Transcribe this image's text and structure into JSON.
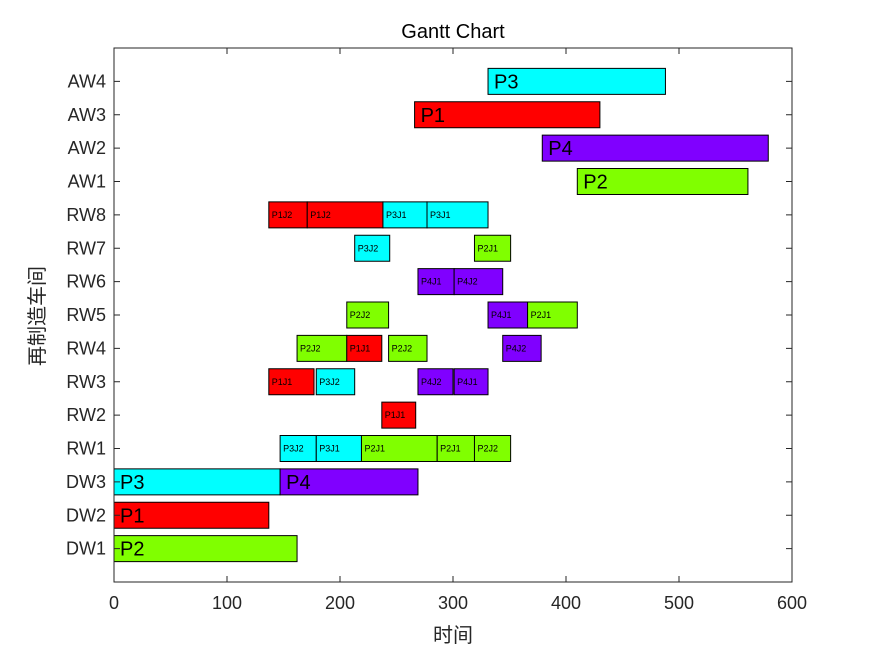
{
  "chart_data": {
    "type": "gantt",
    "title": "Gantt Chart",
    "xlabel": "时间",
    "ylabel": "再制造车间",
    "xlim": [
      0,
      600
    ],
    "xticks": [
      0,
      100,
      200,
      300,
      400,
      500,
      600
    ],
    "categories": [
      "DW1",
      "DW2",
      "DW3",
      "RW1",
      "RW2",
      "RW3",
      "RW4",
      "RW5",
      "RW6",
      "RW7",
      "RW8",
      "AW1",
      "AW2",
      "AW3",
      "AW4"
    ],
    "colors": {
      "P1": "#ff0000",
      "P2": "#80ff00",
      "P3": "#00ffff",
      "P4": "#8000ff"
    },
    "tasks": [
      {
        "row": "DW1",
        "start": 0,
        "end": 162,
        "label": "P2",
        "product": "P2",
        "size": "big"
      },
      {
        "row": "DW2",
        "start": 0,
        "end": 137,
        "label": "P1",
        "product": "P1",
        "size": "big"
      },
      {
        "row": "DW3",
        "start": 0,
        "end": 147,
        "label": "P3",
        "product": "P3",
        "size": "big"
      },
      {
        "row": "DW3",
        "start": 147,
        "end": 269,
        "label": "P4",
        "product": "P4",
        "size": "big"
      },
      {
        "row": "RW1",
        "start": 147,
        "end": 179,
        "label": "P3J2",
        "product": "P3",
        "size": "small"
      },
      {
        "row": "RW1",
        "start": 179,
        "end": 219,
        "label": "P3J1",
        "product": "P3",
        "size": "small"
      },
      {
        "row": "RW1",
        "start": 219,
        "end": 286,
        "label": "P2J1",
        "product": "P2",
        "size": "small"
      },
      {
        "row": "RW1",
        "start": 286,
        "end": 319,
        "label": "P2J1",
        "product": "P2",
        "size": "small"
      },
      {
        "row": "RW1",
        "start": 319,
        "end": 351,
        "label": "P2J2",
        "product": "P2",
        "size": "small"
      },
      {
        "row": "RW2",
        "start": 237,
        "end": 267,
        "label": "P1J1",
        "product": "P1",
        "size": "small"
      },
      {
        "row": "RW3",
        "start": 137,
        "end": 177,
        "label": "P1J1",
        "product": "P1",
        "size": "small"
      },
      {
        "row": "RW3",
        "start": 179,
        "end": 213,
        "label": "P3J2",
        "product": "P3",
        "size": "small"
      },
      {
        "row": "RW3",
        "start": 269,
        "end": 300,
        "label": "P4J2",
        "product": "P4",
        "size": "small"
      },
      {
        "row": "RW3",
        "start": 301,
        "end": 331,
        "label": "P4J1",
        "product": "P4",
        "size": "small"
      },
      {
        "row": "RW4",
        "start": 162,
        "end": 206,
        "label": "P2J2",
        "product": "P2",
        "size": "small"
      },
      {
        "row": "RW4",
        "start": 206,
        "end": 237,
        "label": "P1J1",
        "product": "P1",
        "size": "small"
      },
      {
        "row": "RW4",
        "start": 243,
        "end": 277,
        "label": "P2J2",
        "product": "P2",
        "size": "small"
      },
      {
        "row": "RW4",
        "start": 344,
        "end": 378,
        "label": "P4J2",
        "product": "P4",
        "size": "small"
      },
      {
        "row": "RW5",
        "start": 206,
        "end": 243,
        "label": "P2J2",
        "product": "P2",
        "size": "small"
      },
      {
        "row": "RW5",
        "start": 331,
        "end": 366,
        "label": "P4J1",
        "product": "P4",
        "size": "small"
      },
      {
        "row": "RW5",
        "start": 366,
        "end": 410,
        "label": "P2J1",
        "product": "P2",
        "size": "small"
      },
      {
        "row": "RW6",
        "start": 269,
        "end": 301,
        "label": "P4J1",
        "product": "P4",
        "size": "small"
      },
      {
        "row": "RW6",
        "start": 301,
        "end": 344,
        "label": "P4J2",
        "product": "P4",
        "size": "small"
      },
      {
        "row": "RW7",
        "start": 213,
        "end": 244,
        "label": "P3J2",
        "product": "P3",
        "size": "small"
      },
      {
        "row": "RW7",
        "start": 319,
        "end": 351,
        "label": "P2J1",
        "product": "P2",
        "size": "small"
      },
      {
        "row": "RW8",
        "start": 137,
        "end": 171,
        "label": "P1J2",
        "product": "P1",
        "size": "small"
      },
      {
        "row": "RW8",
        "start": 171,
        "end": 238,
        "label": "P1J2",
        "product": "P1",
        "size": "small"
      },
      {
        "row": "RW8",
        "start": 238,
        "end": 277,
        "label": "P3J1",
        "product": "P3",
        "size": "small"
      },
      {
        "row": "RW8",
        "start": 277,
        "end": 331,
        "label": "P3J1",
        "product": "P3",
        "size": "small"
      },
      {
        "row": "AW1",
        "start": 410,
        "end": 561,
        "label": "P2",
        "product": "P2",
        "size": "big"
      },
      {
        "row": "AW2",
        "start": 379,
        "end": 579,
        "label": "P4",
        "product": "P4",
        "size": "big"
      },
      {
        "row": "AW3",
        "start": 266,
        "end": 430,
        "label": "P1",
        "product": "P1",
        "size": "big"
      },
      {
        "row": "AW4",
        "start": 331,
        "end": 488,
        "label": "P3",
        "product": "P3",
        "size": "big"
      }
    ]
  }
}
